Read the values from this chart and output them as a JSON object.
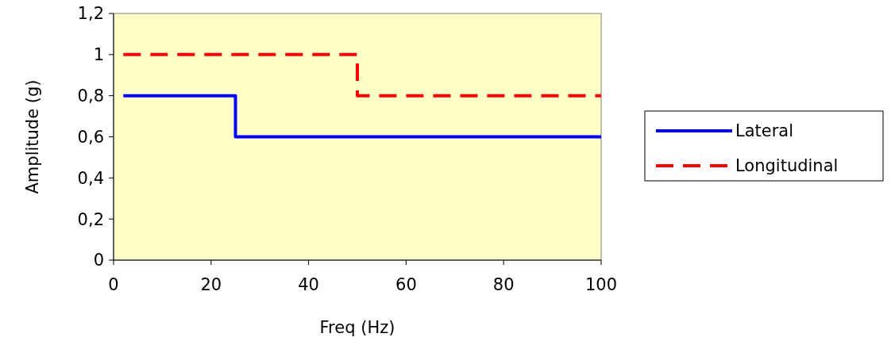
{
  "chart_data": {
    "type": "step",
    "xlabel": "Freq (Hz)",
    "ylabel": "Amplitude (g)",
    "xlim": [
      0,
      100
    ],
    "xticks": [
      0,
      20,
      40,
      60,
      80,
      100
    ],
    "ylim": [
      0,
      1.2
    ],
    "yticks": [
      0,
      {
        "value": 0.2,
        "label": "0,2"
      },
      {
        "value": 0.4,
        "label": "0,4"
      },
      {
        "value": 0.6,
        "label": "0,6"
      },
      {
        "value": 0.8,
        "label": "0,8"
      },
      1,
      {
        "value": 1.2,
        "label": "1,2"
      }
    ],
    "grid": false,
    "legend": "right",
    "line_style": "solid",
    "series": [
      {
        "name": "Lateral",
        "color": "#0000ff",
        "x": [
          2,
          25,
          100
        ],
        "values": [
          0.8,
          0.6,
          0.6
        ]
      },
      {
        "name": "Longitudinal",
        "color": "#ff0000",
        "x": [
          2,
          50,
          100
        ],
        "values": [
          1,
          0.8,
          0.8
        ],
        "line_style": "dashed"
      }
    ]
  }
}
